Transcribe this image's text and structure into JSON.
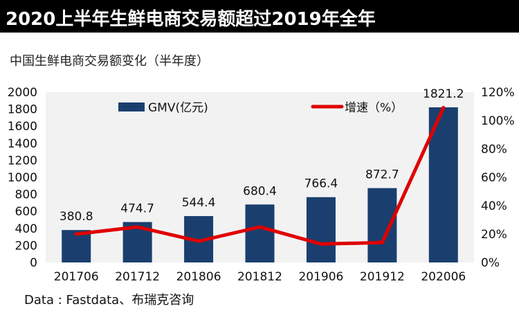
{
  "header": {
    "title": "2020上半年生鲜电商交易额超过2019年全年"
  },
  "subtitle": "中国生鲜电商交易额变化（半年度）",
  "source": "Data : Fastdata、布瑞克咨询",
  "colors": {
    "bar": "#1a3f6f",
    "line": "#e00000",
    "plot_bg": "#f2f2f2",
    "grid": "#ffffff"
  },
  "chart_data": {
    "type": "bar",
    "categories": [
      "201706",
      "201712",
      "201806",
      "201812",
      "201906",
      "201912",
      "202006"
    ],
    "series": [
      {
        "name": "GMV(亿元)",
        "type": "bar",
        "axis": "left",
        "values": [
          380.8,
          474.7,
          544.4,
          680.4,
          766.4,
          872.7,
          1821.2
        ]
      },
      {
        "name": "增速（%）",
        "type": "line",
        "axis": "right",
        "values": [
          20,
          25,
          15,
          25,
          13,
          14,
          109
        ]
      }
    ],
    "data_labels": [
      "380.8",
      "474.7",
      "544.4",
      "680.4",
      "766.4",
      "872.7",
      "1821.2"
    ],
    "ylim": [
      0,
      2000
    ],
    "y_ticks": [
      "0",
      "200",
      "400",
      "600",
      "800",
      "1000",
      "1200",
      "1400",
      "1600",
      "1800",
      "2000"
    ],
    "y2lim": [
      0,
      120
    ],
    "y2_ticks": [
      "0%",
      "20%",
      "40%",
      "60%",
      "80%",
      "100%",
      "120%"
    ],
    "legend_position": "top",
    "grid": false
  }
}
